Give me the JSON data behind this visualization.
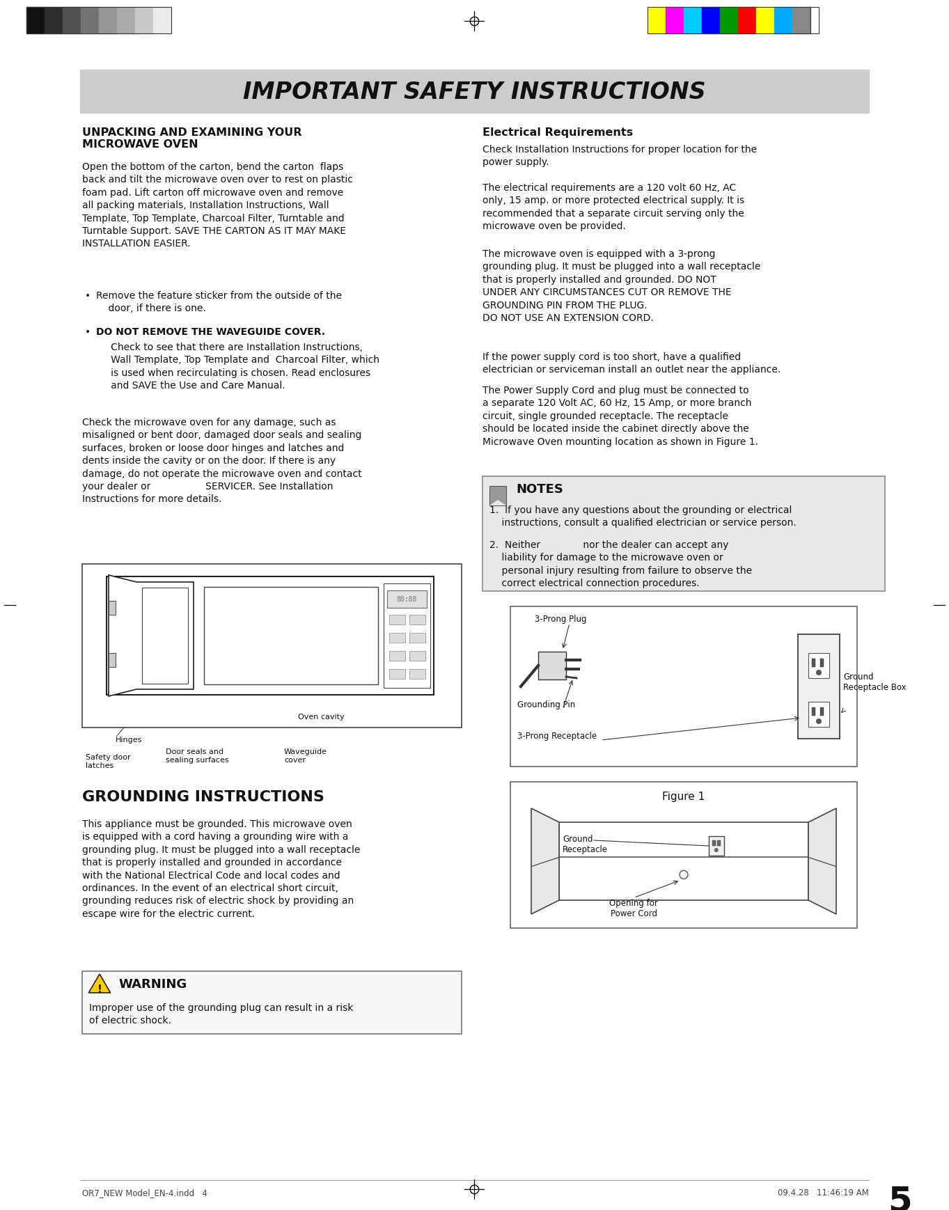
{
  "page_bg": "#ffffff",
  "header_bg": "#cccccc",
  "header_text": "IMPORTANT SAFETY INSTRUCTIONS",
  "header_text_color": "#111111",
  "main_text_color": "#111111",
  "gray_strip_colors": [
    "#111111",
    "#2d2d2d",
    "#505050",
    "#737373",
    "#969696",
    "#aaaaaa",
    "#c8c8c8",
    "#ebebeb"
  ],
  "color_strip_colors": [
    "#ffff00",
    "#ff00ff",
    "#00ccff",
    "#0000ff",
    "#009900",
    "#ff0000",
    "#ffff00",
    "#00aaff",
    "#888888"
  ],
  "left_col_title1": "UNPACKING AND EXAMINING YOUR\nMICROWAVE OVEN",
  "left_col_body1": "Open the bottom of the carton, bend the carton  flaps\nback and tilt the microwave oven over to rest on plastic\nfoam pad. Lift carton off microwave oven and remove\nall packing materials, Installation Instructions, Wall\nTemplate, Top Template, Charcoal Filter, Turntable and\nTurntable Support. SAVE THE CARTON AS IT MAY MAKE\nINSTALLATION EASIER.",
  "left_bullet1": "Remove the feature sticker from the outside of the\n    door, if there is one.",
  "left_bullet2a": "DO NOT REMOVE THE WAVEGUIDE COVER.",
  "left_bullet2b": "   Check to see that there are Installation Instructions,\n   Wall Template, Top Template and  Charcoal Filter, which\n   is used when recirculating is chosen. Read enclosures\n   and SAVE the Use and Care Manual.",
  "left_col_body2": "Check the microwave oven for any damage, such as\nmisaligned or bent door, damaged door seals and sealing\nsurfaces, broken or loose door hinges and latches and\ndents inside the cavity or on the door. If there is any\ndamage, do not operate the microwave oven and contact\nyour dealer or                  SERVICER. See Installation\nInstructions for more details.",
  "label_hinges": "Hinges",
  "label_door_seals": "Door seals and\nsealing surfaces",
  "label_oven_cavity": "Oven cavity",
  "label_safety_door": "Safety door\nlatches",
  "label_waveguide": "Waveguide\ncover",
  "left_col_title2": "GROUNDING INSTRUCTIONS",
  "left_col_body3": "This appliance must be grounded. This microwave oven\nis equipped with a cord having a grounding wire with a\ngrounding plug. It must be plugged into a wall receptacle\nthat is properly installed and grounded in accordance\nwith the National Electrical Code and local codes and\nordinances. In the event of an electrical short circuit,\ngrounding reduces risk of electric shock by providing an\nescape wire for the electric current.",
  "warning_title": "WARNING",
  "warning_body": "Improper use of the grounding plug can result in a risk\nof electric shock.",
  "right_col_title": "Electrical Requirements",
  "right_col_body1": "Check Installation Instructions for proper location for the\npower supply.",
  "right_col_body2": "The electrical requirements are a 120 volt 60 Hz, AC\nonly, 15 amp. or more protected electrical supply. It is\nrecommended that a separate circuit serving only the\nmicrowave oven be provided.",
  "right_col_body3": "The microwave oven is equipped with a 3-prong\ngrounding plug. It must be plugged into a wall receptacle\nthat is properly installed and grounded. DO NOT\nUNDER ANY CIRCUMSTANCES CUT OR REMOVE THE\nGROUNDING PIN FROM THE PLUG.\nDO NOT USE AN EXTENSION CORD.",
  "right_col_body4": "If the power supply cord is too short, have a qualiﬁed\nelectrician or serviceman install an outlet near the appliance.",
  "right_col_body5": "The Power Supply Cord and plug must be connected to\na separate 120 Volt AC, 60 Hz, 15 Amp, or more branch\ncircuit, single grounded receptacle. The receptacle\nshould be located inside the cabinet directly above the\nMicrowave Oven mounting location as shown in Figure 1.",
  "notes_title": "NOTES",
  "notes_body1": "1.  If you have any questions about the grounding or electrical\n    instructions, consult a qualiﬁed electrician or service person.",
  "notes_body2": "2.  Neither              nor the dealer can accept any\n    liability for damage to the microwave oven or\n    personal injury resulting from failure to observe the\n    correct electrical connection procedures.",
  "label_3prong_plug": "3-Prong Plug",
  "label_grounding_pin": "Grounding Pin",
  "label_3prong_rec": "3-Prong Receptacle",
  "label_ground_rec_box": "Ground\nReceptacle Box",
  "figure1_title": "Figure 1",
  "figure1_label1": "Ground\nReceptacle",
  "figure1_label2": "Opening for\nPower Cord",
  "footer_left": "OR7_NEW Model_EN-4.indd   4",
  "footer_right": "09.4.28   11:46:19 AM",
  "page_number": "5"
}
